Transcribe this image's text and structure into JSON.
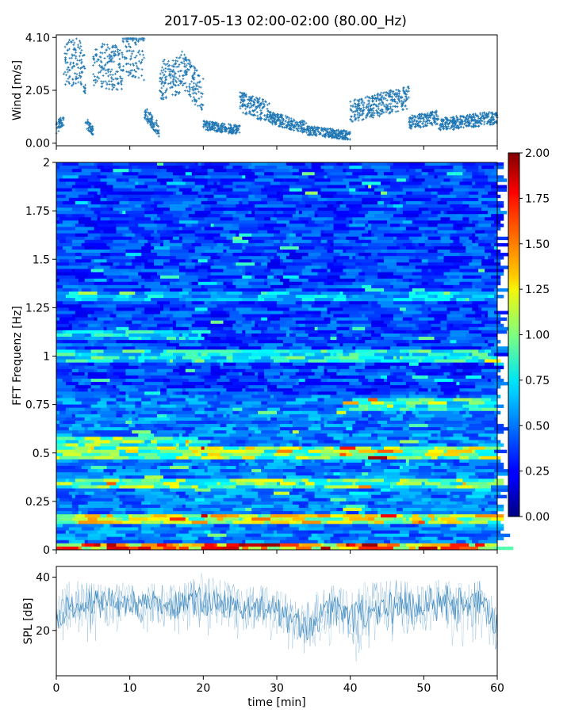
{
  "title": "2017-05-13 02:00-02:00 (80.00_Hz)",
  "chart_data": [
    {
      "id": "wind",
      "type": "scatter",
      "ylabel": "Wind [m/s]",
      "ylim": [
        -0.1,
        4.2
      ],
      "yticks": [
        "0.00",
        "2.05",
        "4.10"
      ],
      "ytick_values": [
        0.0,
        2.05,
        4.1
      ],
      "xlim": [
        0,
        60
      ],
      "color": "#1f77b4",
      "marker": "plus",
      "segments": [
        {
          "x": [
            0,
            1
          ],
          "y": [
            0.6,
            0.9
          ]
        },
        {
          "x": [
            1,
            3
          ],
          "y": [
            3.0,
            3.3
          ]
        },
        {
          "x": [
            3,
            4
          ],
          "y": [
            3.4,
            2.6
          ]
        },
        {
          "x": [
            4,
            5
          ],
          "y": [
            0.8,
            0.5
          ]
        },
        {
          "x": [
            5,
            9
          ],
          "y": [
            3.0,
            2.9
          ]
        },
        {
          "x": [
            9,
            12
          ],
          "y": [
            3.8,
            3.5
          ]
        },
        {
          "x": [
            12,
            14
          ],
          "y": [
            1.2,
            0.5
          ]
        },
        {
          "x": [
            14,
            17
          ],
          "y": [
            2.4,
            2.7
          ]
        },
        {
          "x": [
            17,
            20
          ],
          "y": [
            2.9,
            1.8
          ]
        },
        {
          "x": [
            20,
            25
          ],
          "y": [
            0.7,
            0.5
          ]
        },
        {
          "x": [
            25,
            29
          ],
          "y": [
            1.6,
            1.2
          ]
        },
        {
          "x": [
            29,
            34
          ],
          "y": [
            1.0,
            0.6
          ]
        },
        {
          "x": [
            34,
            40
          ],
          "y": [
            0.5,
            0.3
          ]
        },
        {
          "x": [
            40,
            48
          ],
          "y": [
            1.2,
            1.8
          ]
        },
        {
          "x": [
            48,
            52
          ],
          "y": [
            0.8,
            1.0
          ]
        },
        {
          "x": [
            52,
            60
          ],
          "y": [
            0.7,
            1.0
          ]
        }
      ]
    },
    {
      "id": "spectrogram",
      "type": "heatmap",
      "ylabel": "FFT Frequenz [Hz]",
      "xlim": [
        0,
        60
      ],
      "ylim": [
        0,
        2
      ],
      "yticks": [
        "0",
        "0.25",
        "0.5",
        "0.75",
        "1",
        "1.25",
        "1.5",
        "1.75",
        "2"
      ],
      "ytick_values": [
        0,
        0.25,
        0.5,
        0.75,
        1,
        1.25,
        1.5,
        1.75,
        2
      ],
      "colormap": "jet",
      "clim": [
        0,
        2
      ],
      "colorbar_ticks": [
        "0.00",
        "0.25",
        "0.50",
        "0.75",
        "1.00",
        "1.25",
        "1.50",
        "1.75",
        "2.00"
      ],
      "colorbar_tick_values": [
        0,
        0.25,
        0.5,
        0.75,
        1.0,
        1.25,
        1.5,
        1.75,
        2.0
      ],
      "baseline": 0.2,
      "bands": [
        {
          "f": 0.005,
          "x0": 0,
          "x1": 60,
          "level": 1.7
        },
        {
          "f": 0.16,
          "x0": 0,
          "x1": 60,
          "level": 1.3
        },
        {
          "f": 0.34,
          "x0": 0,
          "x1": 60,
          "level": 1.1
        },
        {
          "f": 0.5,
          "x0": 0,
          "x1": 60,
          "level": 1.2
        },
        {
          "f": 0.55,
          "x0": 0,
          "x1": 20,
          "level": 1.1
        },
        {
          "f": 0.75,
          "x0": 40,
          "x1": 60,
          "level": 0.9
        },
        {
          "f": 1.0,
          "x0": 0,
          "x1": 60,
          "level": 0.9
        },
        {
          "f": 1.1,
          "x0": 0,
          "x1": 20,
          "level": 0.8
        },
        {
          "f": 1.3,
          "x0": 0,
          "x1": 60,
          "level": 0.7
        }
      ]
    },
    {
      "id": "spl",
      "type": "area",
      "ylabel": "SPL [dB]",
      "xlabel": "time [min]",
      "xlim": [
        0,
        60
      ],
      "ylim": [
        3,
        44
      ],
      "yticks": [
        "20",
        "40"
      ],
      "ytick_values": [
        20,
        40
      ],
      "xticks": [
        "0",
        "10",
        "20",
        "30",
        "40",
        "50",
        "60"
      ],
      "xtick_values": [
        0,
        10,
        20,
        30,
        40,
        50,
        60
      ],
      "color": "#1f77b4",
      "envelope": {
        "x": [
          0,
          2,
          4,
          6,
          8,
          10,
          12,
          14,
          16,
          18,
          20,
          22,
          24,
          26,
          28,
          30,
          32,
          33,
          34,
          35,
          36,
          38,
          40,
          42,
          44,
          46,
          48,
          50,
          52,
          54,
          56,
          58,
          60
        ],
        "mean": [
          24,
          30,
          29,
          30,
          31,
          29,
          31,
          30,
          29,
          31,
          30,
          31,
          29,
          28,
          29,
          27,
          24,
          22,
          21,
          23,
          27,
          28,
          25,
          26,
          29,
          30,
          29,
          28,
          31,
          29,
          30,
          31,
          20
        ],
        "low": [
          12,
          18,
          14,
          17,
          19,
          17,
          19,
          18,
          17,
          18,
          16,
          19,
          17,
          16,
          15,
          14,
          10,
          8,
          7,
          8,
          12,
          14,
          10,
          6,
          12,
          13,
          14,
          12,
          15,
          13,
          14,
          16,
          8
        ],
        "high": [
          33,
          39,
          38,
          37,
          39,
          37,
          38,
          37,
          37,
          38,
          42,
          39,
          38,
          36,
          37,
          35,
          33,
          31,
          30,
          33,
          36,
          37,
          34,
          38,
          38,
          39,
          38,
          36,
          39,
          38,
          37,
          39,
          31
        ]
      }
    }
  ]
}
